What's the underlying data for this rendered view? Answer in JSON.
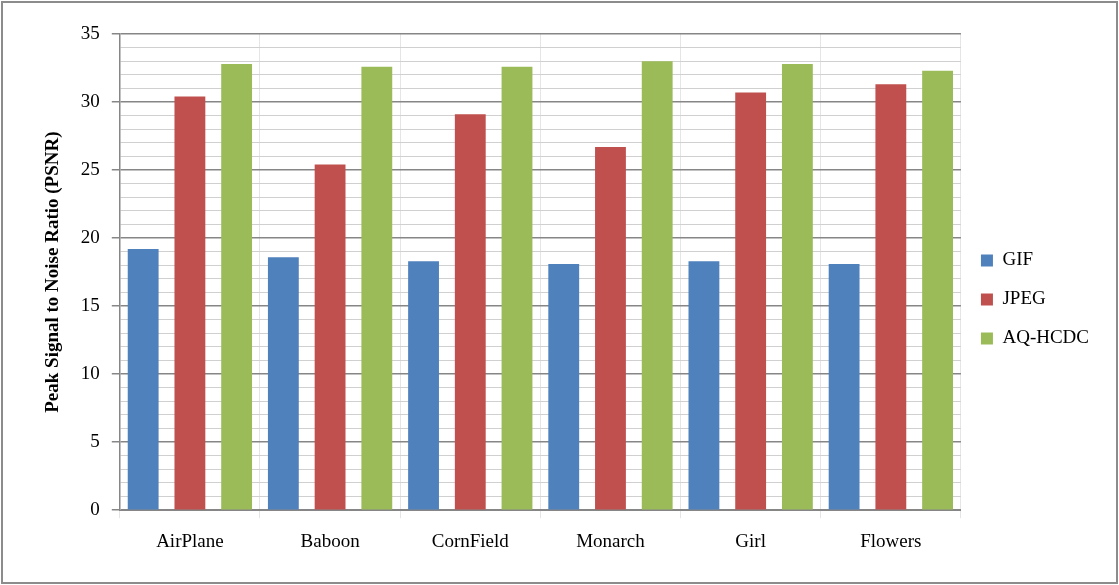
{
  "chart_data": {
    "type": "bar",
    "ylabel": "Peak Signal to Noise Ratio (PSNR)",
    "categories": [
      "AirPlane",
      "Baboon",
      "CornField",
      "Monarch",
      "Girl",
      "Flowers"
    ],
    "series": [
      {
        "name": "GIF",
        "color": "#4f81bd",
        "values": [
          19.2,
          18.6,
          18.3,
          18.1,
          18.3,
          18.1
        ]
      },
      {
        "name": "JPEG",
        "color": "#c0504d",
        "values": [
          30.4,
          25.4,
          29.1,
          26.7,
          30.7,
          31.3
        ]
      },
      {
        "name": "AQ-HCDC",
        "color": "#9bbb59",
        "values": [
          32.8,
          32.6,
          32.6,
          33.0,
          32.8,
          32.3
        ]
      }
    ],
    "ylim": [
      0,
      35
    ],
    "yticks": [
      0,
      {
        "value": 1,
        "label": null
      },
      {
        "value": 2,
        "label": null
      },
      {
        "value": 3,
        "label": null
      },
      {
        "value": 4,
        "label": null
      },
      5,
      {
        "value": 6,
        "label": null
      },
      {
        "value": 7,
        "label": null
      },
      {
        "value": 8,
        "label": null
      },
      {
        "value": 9,
        "label": null
      },
      10,
      {
        "value": 11,
        "label": null
      },
      {
        "value": 12,
        "label": null
      },
      {
        "value": 13,
        "label": null
      },
      {
        "value": 14,
        "label": null
      },
      15,
      {
        "value": 16,
        "label": null
      },
      {
        "value": 17,
        "label": null
      },
      {
        "value": 18,
        "label": null
      },
      {
        "value": 19,
        "label": null
      },
      20,
      {
        "value": 21,
        "label": null
      },
      {
        "value": 22,
        "label": null
      },
      {
        "value": 23,
        "label": null
      },
      {
        "value": 24,
        "label": null
      },
      25,
      {
        "value": 26,
        "label": null
      },
      {
        "value": 27,
        "label": null
      },
      {
        "value": 28,
        "label": null
      },
      {
        "value": 29,
        "label": null
      },
      30,
      {
        "value": 31,
        "label": null
      },
      {
        "value": 32,
        "label": null
      },
      {
        "value": 33,
        "label": null
      },
      {
        "value": 34,
        "label": null
      },
      35
    ],
    "grid": true,
    "legend": "right"
  }
}
